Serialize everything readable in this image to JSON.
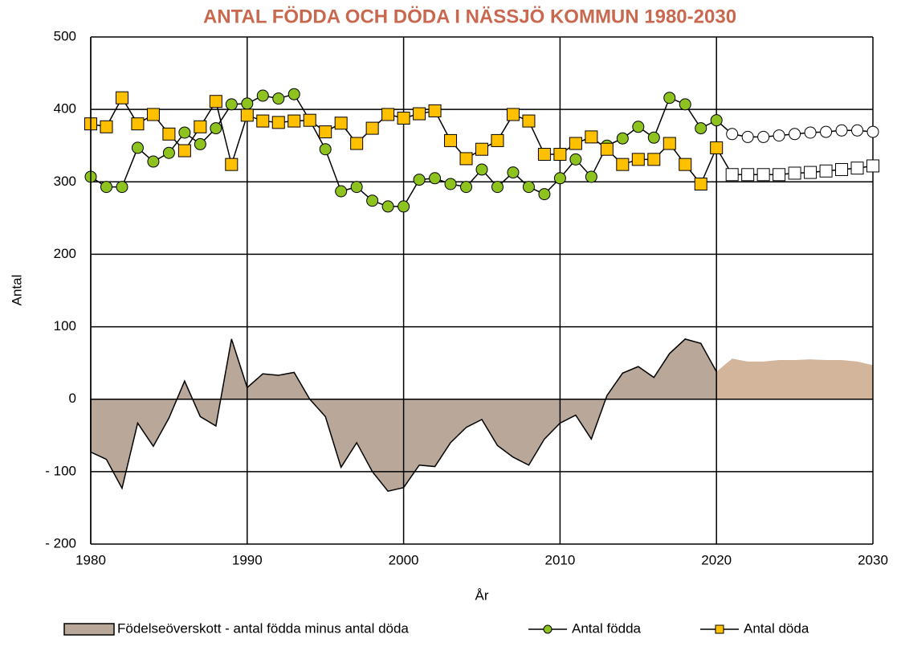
{
  "chart_data": {
    "type": "line",
    "title": "ANTAL FÖDDA OCH DÖDA I NÄSSJÖ KOMMUN 1980-2030",
    "x_label": "År",
    "y_label": "Antal",
    "x": [
      1980,
      1981,
      1982,
      1983,
      1984,
      1985,
      1986,
      1987,
      1988,
      1989,
      1990,
      1991,
      1992,
      1993,
      1994,
      1995,
      1996,
      1997,
      1998,
      1999,
      2000,
      2001,
      2002,
      2003,
      2004,
      2005,
      2006,
      2007,
      2008,
      2009,
      2010,
      2011,
      2012,
      2013,
      2014,
      2015,
      2016,
      2017,
      2018,
      2019,
      2020,
      2021,
      2022,
      2023,
      2024,
      2025,
      2026,
      2027,
      2028,
      2029,
      2030
    ],
    "xlim": [
      1980,
      2030
    ],
    "xticks": [
      1980,
      1990,
      2000,
      2010,
      2020,
      2030
    ],
    "ylim": [
      -200,
      500
    ],
    "yticks": [
      {
        "value": -200,
        "label": "- 200"
      },
      {
        "value": -100,
        "label": "- 100"
      },
      0,
      100,
      200,
      300,
      400,
      500
    ],
    "grid": true,
    "legend": "bottom",
    "forecast_after": 2020,
    "series": [
      {
        "name": "Födelseöverskott - antal födda minus antal döda",
        "kind": "area",
        "color": "#b9a899",
        "forecast_color": "#d3b59c",
        "values": [
          -73,
          -83,
          -123,
          -33,
          -65,
          -26,
          25,
          -24,
          -37,
          83,
          16,
          35,
          33,
          37,
          0,
          -24,
          -94,
          -60,
          -100,
          -127,
          -122,
          -91,
          -93,
          -60,
          -39,
          -28,
          -64,
          -80,
          -91,
          -55,
          -33,
          -22,
          -55,
          5,
          36,
          45,
          30,
          63,
          83,
          77,
          38,
          56,
          52,
          52,
          54,
          54,
          55,
          54,
          54,
          52,
          47
        ]
      },
      {
        "name": "Antal födda",
        "kind": "line",
        "marker": "circle",
        "color": "#8dc21f",
        "forecast_color": "#ffffff",
        "values": [
          307,
          293,
          293,
          347,
          328,
          340,
          368,
          352,
          374,
          407,
          408,
          419,
          415,
          421,
          385,
          345,
          287,
          293,
          274,
          266,
          266,
          303,
          305,
          297,
          293,
          317,
          293,
          313,
          293,
          283,
          305,
          331,
          307,
          350,
          360,
          376,
          361,
          416,
          407,
          374,
          385,
          366,
          362,
          362,
          364,
          366,
          368,
          369,
          371,
          371,
          369
        ]
      },
      {
        "name": "Antal döda",
        "kind": "line",
        "marker": "square",
        "color": "#ffc000",
        "forecast_color": "#ffffff",
        "values": [
          380,
          376,
          416,
          380,
          393,
          366,
          343,
          376,
          411,
          324,
          392,
          384,
          382,
          384,
          385,
          369,
          381,
          353,
          374,
          393,
          388,
          394,
          398,
          357,
          332,
          345,
          357,
          393,
          384,
          338,
          338,
          353,
          362,
          345,
          324,
          331,
          331,
          353,
          324,
          297,
          347,
          310,
          310,
          310,
          310,
          312,
          313,
          315,
          317,
          319,
          322
        ]
      }
    ]
  }
}
